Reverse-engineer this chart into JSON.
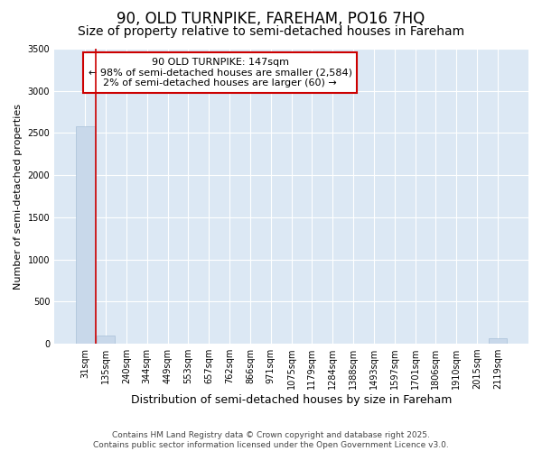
{
  "title": "90, OLD TURNPIKE, FAREHAM, PO16 7HQ",
  "subtitle": "Size of property relative to semi-detached houses in Fareham",
  "xlabel": "Distribution of semi-detached houses by size in Fareham",
  "ylabel": "Number of semi-detached properties",
  "categories": [
    "31sqm",
    "135sqm",
    "240sqm",
    "344sqm",
    "449sqm",
    "553sqm",
    "657sqm",
    "762sqm",
    "866sqm",
    "971sqm",
    "1075sqm",
    "1179sqm",
    "1284sqm",
    "1388sqm",
    "1493sqm",
    "1597sqm",
    "1701sqm",
    "1806sqm",
    "1910sqm",
    "2015sqm",
    "2119sqm"
  ],
  "values": [
    2584,
    100,
    0,
    0,
    0,
    0,
    0,
    0,
    0,
    0,
    0,
    0,
    0,
    0,
    0,
    0,
    0,
    0,
    0,
    0,
    60
  ],
  "bar_color": "#c8d8ea",
  "bar_edge_color": "#a8c0d8",
  "vline_color": "#cc0000",
  "vline_x": 0.5,
  "ylim": [
    0,
    3500
  ],
  "yticks": [
    0,
    500,
    1000,
    1500,
    2000,
    2500,
    3000,
    3500
  ],
  "annotation_title": "90 OLD TURNPIKE: 147sqm",
  "annotation_line1": "← 98% of semi-detached houses are smaller (2,584)",
  "annotation_line2": "2% of semi-detached houses are larger (60) →",
  "annotation_box_facecolor": "#ffffff",
  "annotation_box_edgecolor": "#cc0000",
  "plot_bg_color": "#dce8f4",
  "fig_bg_color": "#ffffff",
  "footer_line1": "Contains HM Land Registry data © Crown copyright and database right 2025.",
  "footer_line2": "Contains public sector information licensed under the Open Government Licence v3.0.",
  "title_fontsize": 12,
  "subtitle_fontsize": 10,
  "tick_fontsize": 7,
  "ylabel_fontsize": 8,
  "xlabel_fontsize": 9,
  "annotation_fontsize": 8,
  "footer_fontsize": 6.5
}
